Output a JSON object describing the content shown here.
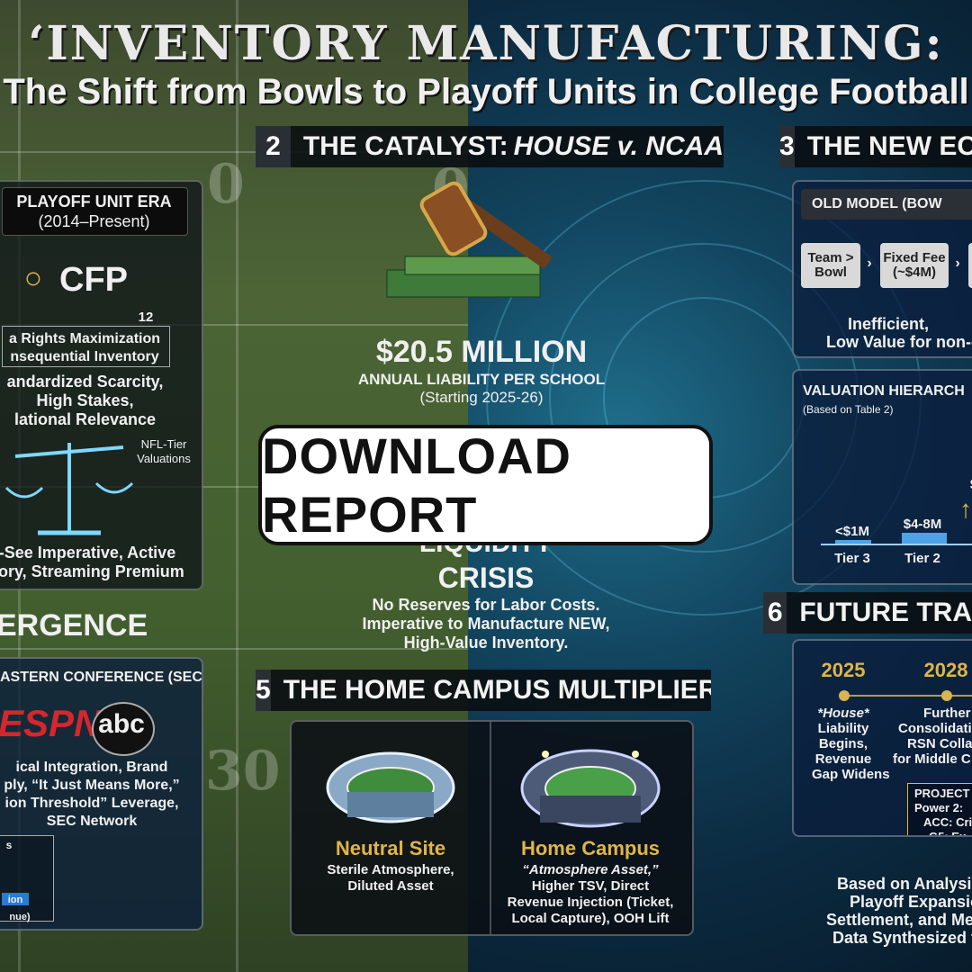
{
  "title": "‘INVENTORY MANUFACTURING:",
  "subtitle": "The Shift from Bowls to Playoff Units in College Football",
  "sections": {
    "s2": {
      "num": "2",
      "label": "THE CATALYST: ",
      "label_italic": "HOUSE v. NCAA"
    },
    "s3": {
      "num": "3",
      "label": "THE NEW EC"
    },
    "s5": {
      "num": "5",
      "label": "THE HOME CAMPUS MULTIPLIER"
    },
    "s6": {
      "num": "6",
      "label": "FUTURE TRA"
    }
  },
  "playoff": {
    "header": "PLAYOFF UNIT ERA",
    "years": "(2014–Present)",
    "logo": "CFP",
    "num": "12",
    "rights1": "a Rights Maximization",
    "rights2": "nsequential Inventory",
    "bullets1": "andardized Scarcity,",
    "bullets2": "High Stakes,",
    "bullets3": "lational Relevance",
    "nfl1": "NFL-Tier",
    "nfl2": "Valuations",
    "imp1": "-See Imperative, Active",
    "imp2": "tory, Streaming Premium"
  },
  "ergence": "ERGENCE",
  "sec": {
    "header": "ASTERN CONFERENCE (SEC)",
    "espn": "ESPN",
    "abc": "abc",
    "l1": "ical Integration, Brand",
    "l2": "ply, “It Just Means More,”",
    "l3": "ion Threshold” Leverage,",
    "l4": "SEC Network",
    "frag1": "s",
    "frag2": "ion",
    "frag3": "nue)"
  },
  "catalyst": {
    "amount": "$20.5 MILLION",
    "liab": "ANNUAL LIABILITY PER SCHOOL",
    "start": "(Starting 2025-26)",
    "liq": "LIQUIDITY",
    "crisis": "CRISIS",
    "d1": "No Reserves for Labor Costs.",
    "d2": "Imperative to Manufacture NEW,",
    "d3": "High-Value Inventory."
  },
  "old_model": {
    "header": "OLD MODEL (BOW",
    "step1": "Team >\nBowl",
    "step2": "Fixed Fee\n(~$4M)",
    "note1": "Inefficient,",
    "note2": "Low Value for non-c"
  },
  "valuation": {
    "header": "VALUATION HIERARCH",
    "source": "(Based on Table 2)",
    "tier3_value": "<$1M",
    "tier2_value": "$4-8M",
    "tier3": "Tier 3",
    "tier2": "Tier 2",
    "dollar": "$"
  },
  "home": {
    "neutral_title": "Neutral Site",
    "neutral_d1": "Sterile Atmosphere,",
    "neutral_d2": "Diluted Asset",
    "home_title": "Home Campus",
    "home_d1": "“Atmosphere Asset,”",
    "home_d2": "Higher TSV, Direct",
    "home_d3": "Revenue Injection (Ticket,",
    "home_d4": "Local Capture), OOH Lift"
  },
  "future": {
    "y1": "2025",
    "y2": "2028",
    "c1a": "*House*",
    "c1b": "Liability",
    "c1c": "Begins,",
    "c1d": "Revenue",
    "c1e": "Gap Widens",
    "c2a": "Further",
    "c2b": "Consolidati",
    "c2c": "RSN Collap",
    "c2d": "for Middle C",
    "p1": "PROJECT",
    "p2": "Power 2: ",
    "p3": "ACC: Cri",
    "p4": "G5: Ex"
  },
  "footer": {
    "l1": "Based on Analysis",
    "l2": "Playoff Expansio",
    "l3": "Settlement, and Med",
    "l4": "Data Synthesized f"
  },
  "yard_numbers": [
    "0",
    "0",
    "30"
  ],
  "cta": "DOWNLOAD REPORT",
  "colors": {
    "accent_gold": "#e0b548",
    "tech_blue": "#12455f",
    "field_green": "#4c6436"
  }
}
